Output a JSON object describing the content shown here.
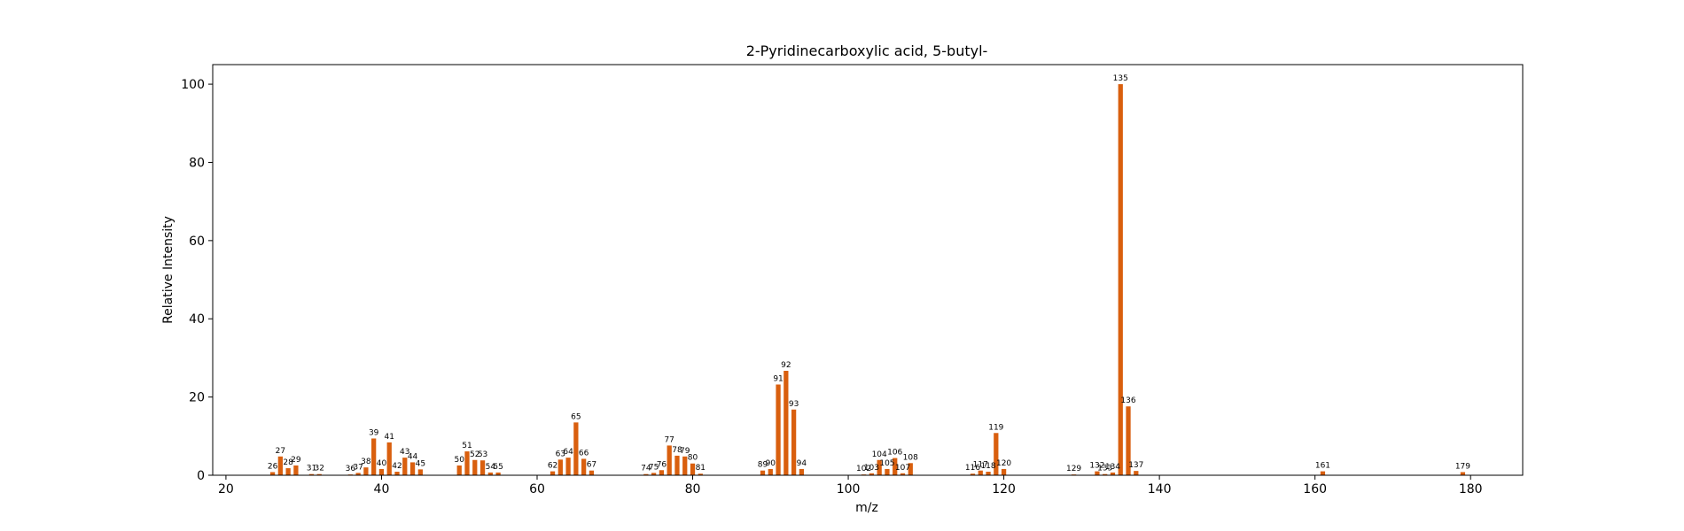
{
  "chart_data": {
    "type": "bar",
    "title": "2-Pyridinecarboxylic acid, 5-butyl-",
    "xlabel": "m/z",
    "ylabel": "Relative Intensity",
    "xlim": [
      18.3,
      186.7
    ],
    "ylim": [
      0,
      105
    ],
    "xticks": [
      20,
      40,
      60,
      80,
      100,
      120,
      140,
      160,
      180
    ],
    "yticks": [
      0,
      20,
      40,
      60,
      80,
      100
    ],
    "bar_color": "#d95f0e",
    "grid": false,
    "peaks": [
      {
        "mz": 26,
        "value": 0.8
      },
      {
        "mz": 27,
        "value": 4.8
      },
      {
        "mz": 28,
        "value": 1.8
      },
      {
        "mz": 29,
        "value": 2.5
      },
      {
        "mz": 31,
        "value": 0.3
      },
      {
        "mz": 32,
        "value": 0.3
      },
      {
        "mz": 36,
        "value": 0.2
      },
      {
        "mz": 37,
        "value": 0.6
      },
      {
        "mz": 38,
        "value": 2.0
      },
      {
        "mz": 39,
        "value": 9.4
      },
      {
        "mz": 40,
        "value": 1.6
      },
      {
        "mz": 41,
        "value": 8.4
      },
      {
        "mz": 42,
        "value": 0.9
      },
      {
        "mz": 43,
        "value": 4.5
      },
      {
        "mz": 44,
        "value": 3.3
      },
      {
        "mz": 45,
        "value": 1.5
      },
      {
        "mz": 50,
        "value": 2.5
      },
      {
        "mz": 51,
        "value": 6.1
      },
      {
        "mz": 52,
        "value": 3.9
      },
      {
        "mz": 53,
        "value": 3.8
      },
      {
        "mz": 54,
        "value": 0.7
      },
      {
        "mz": 55,
        "value": 0.7
      },
      {
        "mz": 62,
        "value": 1.0
      },
      {
        "mz": 63,
        "value": 4.0
      },
      {
        "mz": 64,
        "value": 4.5
      },
      {
        "mz": 65,
        "value": 13.5
      },
      {
        "mz": 66,
        "value": 4.2
      },
      {
        "mz": 67,
        "value": 1.2
      },
      {
        "mz": 74,
        "value": 0.3
      },
      {
        "mz": 75,
        "value": 0.6
      },
      {
        "mz": 76,
        "value": 1.3
      },
      {
        "mz": 77,
        "value": 7.6
      },
      {
        "mz": 78,
        "value": 5.0
      },
      {
        "mz": 79,
        "value": 4.8
      },
      {
        "mz": 80,
        "value": 3.0
      },
      {
        "mz": 81,
        "value": 0.4
      },
      {
        "mz": 89,
        "value": 1.2
      },
      {
        "mz": 90,
        "value": 1.6
      },
      {
        "mz": 91,
        "value": 23.2
      },
      {
        "mz": 92,
        "value": 26.7
      },
      {
        "mz": 93,
        "value": 16.8
      },
      {
        "mz": 94,
        "value": 1.6
      },
      {
        "mz": 102,
        "value": 0.2
      },
      {
        "mz": 103,
        "value": 0.5
      },
      {
        "mz": 104,
        "value": 3.9
      },
      {
        "mz": 105,
        "value": 1.6
      },
      {
        "mz": 106,
        "value": 4.4
      },
      {
        "mz": 107,
        "value": 0.5
      },
      {
        "mz": 108,
        "value": 3.1
      },
      {
        "mz": 116,
        "value": 0.4
      },
      {
        "mz": 117,
        "value": 1.2
      },
      {
        "mz": 118,
        "value": 0.9
      },
      {
        "mz": 119,
        "value": 10.8
      },
      {
        "mz": 120,
        "value": 1.6
      },
      {
        "mz": 129,
        "value": 0.2
      },
      {
        "mz": 132,
        "value": 1.0
      },
      {
        "mz": 133,
        "value": 0.3
      },
      {
        "mz": 134,
        "value": 0.7
      },
      {
        "mz": 135,
        "value": 100.0
      },
      {
        "mz": 136,
        "value": 17.6
      },
      {
        "mz": 137,
        "value": 1.1
      },
      {
        "mz": 161,
        "value": 1.0
      },
      {
        "mz": 179,
        "value": 0.8
      }
    ]
  }
}
